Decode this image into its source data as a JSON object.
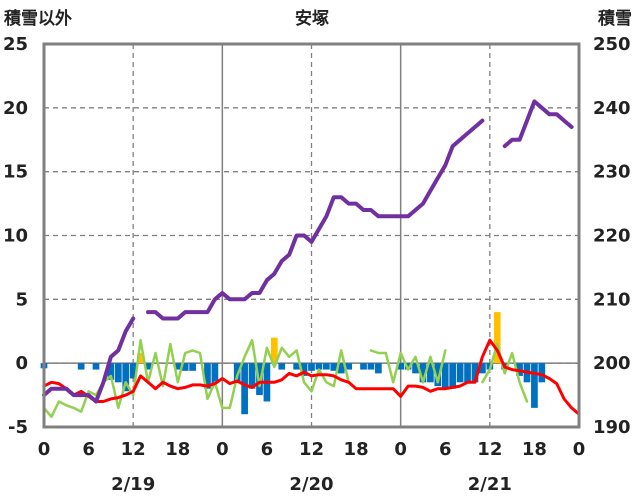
{
  "chart_data": {
    "type": "line",
    "title": "安塚",
    "ylabel_left": "積雪以外",
    "ylabel_right": "積雪",
    "ylim_left": [
      -5,
      25
    ],
    "ylim_right": [
      190,
      250
    ],
    "yticks_left": [
      "-5",
      "0",
      "5",
      "10",
      "15",
      "20",
      "25"
    ],
    "yticks_right": [
      "190",
      "200",
      "210",
      "220",
      "230",
      "240",
      "250"
    ],
    "x_range_hours": [
      0,
      72
    ],
    "xticks": [
      "0",
      "6",
      "12",
      "18",
      "0",
      "6",
      "12",
      "18",
      "0",
      "6",
      "12",
      "18",
      "0"
    ],
    "date_labels": [
      "2/19",
      "2/20",
      "2/21"
    ],
    "grid": true,
    "colors": {
      "snow_depth": "#7030a0",
      "temperature": "#ff0000",
      "green_series": "#92d050",
      "bar_negative": "#0070c0",
      "bar_positive": "#ffc000",
      "grid": "#808080",
      "frame": "#808080"
    },
    "snow_depth": [
      [
        [
          0,
          195
        ],
        [
          1,
          196
        ],
        [
          2,
          196
        ],
        [
          3,
          196
        ],
        [
          4,
          195
        ],
        [
          5,
          195
        ],
        [
          6,
          195
        ],
        [
          7,
          194
        ],
        [
          8,
          197
        ],
        [
          9,
          201
        ],
        [
          10,
          202
        ],
        [
          11,
          205
        ],
        [
          12,
          207
        ]
      ],
      [
        [
          14,
          208
        ],
        [
          15,
          208
        ],
        [
          16,
          207
        ],
        [
          17,
          207
        ],
        [
          18,
          207
        ],
        [
          19,
          208
        ],
        [
          20,
          208
        ],
        [
          21,
          208
        ],
        [
          22,
          208
        ],
        [
          23,
          210
        ],
        [
          24,
          211
        ],
        [
          25,
          210
        ],
        [
          26,
          210
        ],
        [
          27,
          210
        ],
        [
          28,
          211
        ],
        [
          29,
          211
        ],
        [
          30,
          213
        ],
        [
          31,
          214
        ],
        [
          32,
          216
        ],
        [
          33,
          217
        ],
        [
          34,
          220
        ],
        [
          35,
          220
        ],
        [
          36,
          219
        ],
        [
          37,
          221
        ],
        [
          38,
          223
        ],
        [
          39,
          226
        ],
        [
          40,
          226
        ],
        [
          41,
          225
        ],
        [
          42,
          225
        ],
        [
          43,
          224
        ],
        [
          44,
          224
        ],
        [
          45,
          223
        ],
        [
          46,
          223
        ],
        [
          47,
          223
        ],
        [
          48,
          223
        ],
        [
          49,
          223
        ],
        [
          50,
          224
        ],
        [
          51,
          225
        ],
        [
          52,
          227
        ],
        [
          53,
          229
        ],
        [
          54,
          231
        ],
        [
          55,
          234
        ],
        [
          56,
          235
        ],
        [
          57,
          236
        ],
        [
          58,
          237
        ],
        [
          59,
          238
        ]
      ],
      [
        [
          62,
          234
        ],
        [
          63,
          235
        ],
        [
          64,
          235
        ],
        [
          65,
          238
        ],
        [
          66,
          241
        ],
        [
          67,
          240
        ],
        [
          68,
          239
        ],
        [
          69,
          239
        ],
        [
          70,
          238
        ],
        [
          71,
          237
        ]
      ]
    ],
    "temperature": [
      [
        0,
        -1.8
      ],
      [
        1,
        -1.5
      ],
      [
        2,
        -1.6
      ],
      [
        3,
        -2.0
      ],
      [
        4,
        -2.5
      ],
      [
        5,
        -2.2
      ],
      [
        6,
        -2.6
      ],
      [
        7,
        -3.0
      ],
      [
        8,
        -3.0
      ],
      [
        9,
        -2.8
      ],
      [
        10,
        -2.7
      ],
      [
        11,
        -2.5
      ],
      [
        12,
        -2.2
      ],
      [
        13,
        -1.0
      ],
      [
        14,
        -1.5
      ],
      [
        15,
        -2.0
      ],
      [
        16,
        -1.5
      ],
      [
        17,
        -1.8
      ],
      [
        18,
        -2.0
      ],
      [
        19,
        -1.9
      ],
      [
        20,
        -1.7
      ],
      [
        21,
        -1.7
      ],
      [
        22,
        -1.8
      ],
      [
        23,
        -1.6
      ],
      [
        24,
        -1.2
      ],
      [
        25,
        -1.6
      ],
      [
        26,
        -1.4
      ],
      [
        27,
        -1.7
      ],
      [
        28,
        -1.9
      ],
      [
        29,
        -1.5
      ],
      [
        30,
        -1.5
      ],
      [
        31,
        -1.5
      ],
      [
        32,
        -1.3
      ],
      [
        33,
        -0.8
      ],
      [
        34,
        -1.0
      ],
      [
        35,
        -0.7
      ],
      [
        36,
        -1.0
      ],
      [
        37,
        -0.9
      ],
      [
        38,
        -0.9
      ],
      [
        39,
        -1.0
      ],
      [
        40,
        -1.3
      ],
      [
        41,
        -1.5
      ],
      [
        42,
        -2.0
      ],
      [
        43,
        -2.0
      ],
      [
        44,
        -2.0
      ],
      [
        45,
        -2.0
      ],
      [
        46,
        -2.0
      ],
      [
        47,
        -2.0
      ],
      [
        48,
        -2.6
      ],
      [
        49,
        -1.8
      ],
      [
        50,
        -1.8
      ],
      [
        51,
        -1.9
      ],
      [
        52,
        -2.2
      ],
      [
        53,
        -2.0
      ],
      [
        54,
        -2.0
      ],
      [
        55,
        -1.9
      ],
      [
        56,
        -1.8
      ],
      [
        57,
        -1.5
      ],
      [
        58,
        -1.5
      ],
      [
        59,
        0.5
      ],
      [
        60,
        1.8
      ],
      [
        61,
        1.0
      ],
      [
        62,
        -0.3
      ],
      [
        63,
        -0.5
      ],
      [
        64,
        -0.6
      ],
      [
        65,
        -0.7
      ],
      [
        66,
        -0.8
      ],
      [
        67,
        -0.9
      ],
      [
        68,
        -1.2
      ],
      [
        69,
        -1.6
      ],
      [
        70,
        -2.8
      ],
      [
        71,
        -3.5
      ],
      [
        72,
        -4.0
      ]
    ],
    "green_series": [
      [
        [
          0,
          -3.5
        ],
        [
          1,
          -4.2
        ],
        [
          2,
          -3.0
        ],
        [
          3,
          -3.3
        ],
        [
          4,
          -3.5
        ],
        [
          5,
          -3.8
        ],
        [
          6,
          -2.2
        ],
        [
          7,
          -2.5
        ],
        [
          8,
          -1.5
        ],
        [
          9,
          -1.0
        ],
        [
          10,
          -3.5
        ],
        [
          11,
          -1.5
        ],
        [
          12,
          -2.5
        ],
        [
          13,
          1.8
        ],
        [
          14,
          -1.5
        ],
        [
          15,
          0.8
        ],
        [
          16,
          -1.8
        ],
        [
          17,
          1.5
        ],
        [
          18,
          -1.5
        ],
        [
          19,
          0.8
        ],
        [
          20,
          1.0
        ],
        [
          21,
          0.8
        ],
        [
          22,
          -2.8
        ],
        [
          23,
          -1.5
        ],
        [
          24,
          -3.5
        ],
        [
          25,
          -3.5
        ],
        [
          26,
          -1.0
        ],
        [
          27,
          0.5
        ],
        [
          28,
          1.8
        ],
        [
          29,
          -1.8
        ],
        [
          30,
          1.2
        ],
        [
          31,
          -0.3
        ],
        [
          32,
          1.2
        ],
        [
          33,
          0.5
        ],
        [
          34,
          1.0
        ],
        [
          35,
          -1.5
        ],
        [
          36,
          -2.2
        ],
        [
          37,
          -0.5
        ],
        [
          38,
          -1.5
        ],
        [
          39,
          -1.8
        ],
        [
          40,
          1.0
        ],
        [
          41,
          -1.5
        ]
      ],
      [
        [
          44,
          1.0
        ],
        [
          45,
          0.8
        ],
        [
          46,
          0.8
        ],
        [
          47,
          -1.5
        ],
        [
          48,
          0.8
        ],
        [
          49,
          -0.5
        ],
        [
          50,
          0.5
        ],
        [
          51,
          -1.5
        ],
        [
          52,
          0.5
        ],
        [
          53,
          -1.5
        ],
        [
          54,
          1.0
        ]
      ],
      [
        [
          59,
          -1.5
        ],
        [
          60,
          -0.5
        ],
        [
          61,
          1.5
        ],
        [
          62,
          -0.8
        ],
        [
          63,
          0.8
        ],
        [
          64,
          -1.5
        ],
        [
          65,
          -3.0
        ]
      ]
    ],
    "bars": [
      [
        0,
        -0.4
      ],
      [
        5,
        -0.5
      ],
      [
        7,
        -0.5
      ],
      [
        9,
        -1.3
      ],
      [
        10,
        -1.5
      ],
      [
        11,
        -2.2
      ],
      [
        12,
        -1.2
      ],
      [
        13,
        0.8
      ],
      [
        14,
        -0.5
      ],
      [
        18,
        -0.5
      ],
      [
        19,
        -0.6
      ],
      [
        20,
        -0.6
      ],
      [
        22,
        -2.0
      ],
      [
        23,
        -1.6
      ],
      [
        26,
        -1.4
      ],
      [
        27,
        -4.0
      ],
      [
        28,
        -2.0
      ],
      [
        29,
        -2.5
      ],
      [
        30,
        -3.0
      ],
      [
        31,
        2.0
      ],
      [
        32,
        -0.5
      ],
      [
        34,
        -0.5
      ],
      [
        35,
        -1.0
      ],
      [
        36,
        -0.6
      ],
      [
        37,
        -0.5
      ],
      [
        38,
        -0.5
      ],
      [
        39,
        -0.6
      ],
      [
        40,
        -0.8
      ],
      [
        41,
        -0.5
      ],
      [
        43,
        -0.5
      ],
      [
        44,
        -0.5
      ],
      [
        45,
        -0.8
      ],
      [
        48,
        -0.5
      ],
      [
        49,
        -0.5
      ],
      [
        50,
        -0.8
      ],
      [
        51,
        -1.5
      ],
      [
        52,
        -1.5
      ],
      [
        53,
        -1.8
      ],
      [
        54,
        -2.0
      ],
      [
        55,
        -2.0
      ],
      [
        56,
        -1.5
      ],
      [
        57,
        -1.5
      ],
      [
        58,
        -1.5
      ],
      [
        59,
        -0.8
      ],
      [
        60,
        -0.5
      ],
      [
        61,
        4.0
      ],
      [
        62,
        -0.5
      ],
      [
        64,
        -1.0
      ],
      [
        65,
        -1.5
      ],
      [
        66,
        -3.5
      ],
      [
        67,
        -1.5
      ]
    ]
  }
}
